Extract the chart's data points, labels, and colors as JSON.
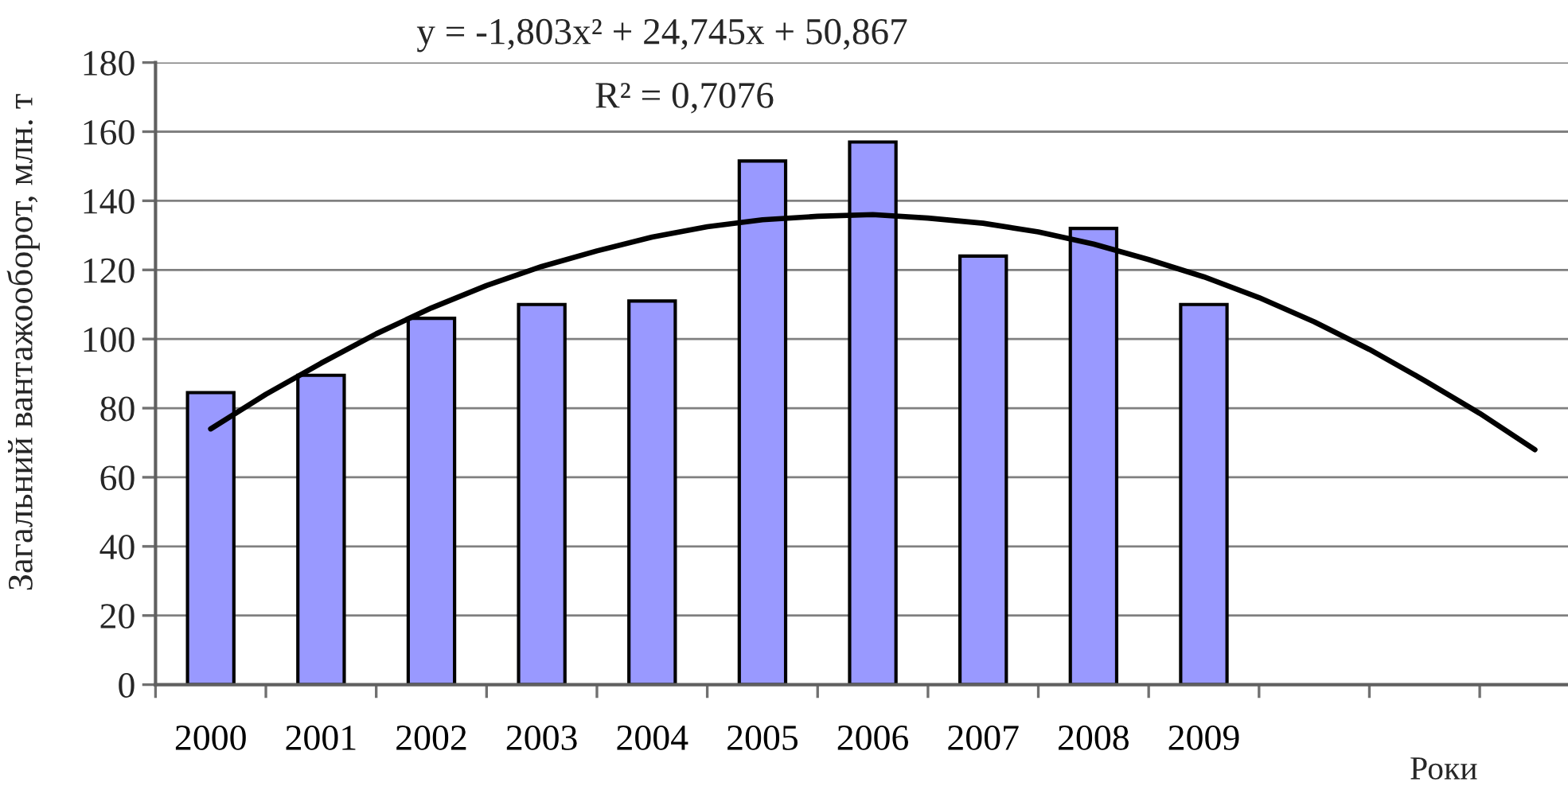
{
  "chart_data": {
    "type": "bar",
    "annotations": [
      "y = -1,803x² + 24,745x + 50,867",
      "R² = 0,7076"
    ],
    "xlabel": "Роки",
    "ylabel": "Загальний вантажооборот, млн. т",
    "x": [
      2000,
      2001,
      2002,
      2003,
      2004,
      2005,
      2006,
      2007,
      2008,
      2009
    ],
    "series": [
      {
        "color": "#9999ff",
        "values": [
          84.5,
          89.5,
          106,
          110,
          111,
          151.5,
          157,
          124,
          132,
          110
        ]
      },
      {
        "type": "line",
        "color": "#000000",
        "x": [
          2000,
          2000.5,
          2001,
          2001.5,
          2002,
          2002.5,
          2003,
          2003.5,
          2004,
          2004.5,
          2005,
          2005.5,
          2006,
          2006.5,
          2007,
          2007.5,
          2008,
          2008.5,
          2009,
          2009.5,
          2010,
          2010.5,
          2011,
          2011.5,
          2012
        ],
        "values": [
          74,
          84,
          93,
          101.5,
          109,
          115.5,
          121,
          125.5,
          129.5,
          132.5,
          134.5,
          135.5,
          136,
          135,
          133.5,
          131,
          127.5,
          123,
          118,
          112,
          105,
          97,
          88,
          78.5,
          68
        ]
      }
    ],
    "xlim": [
      1999.5,
      2012.3
    ],
    "xticks": [
      2000,
      2001,
      2002,
      2003,
      2004,
      2005,
      2006,
      2007,
      2008,
      2009,
      {
        "value": 1999.5,
        "label": null
      },
      {
        "value": 2000.5,
        "label": null
      },
      {
        "value": 2001.5,
        "label": null
      },
      {
        "value": 2002.5,
        "label": null
      },
      {
        "value": 2003.5,
        "label": null
      },
      {
        "value": 2004.5,
        "label": null
      },
      {
        "value": 2005.5,
        "label": null
      },
      {
        "value": 2006.5,
        "label": null
      },
      {
        "value": 2007.5,
        "label": null
      },
      {
        "value": 2008.5,
        "label": null
      },
      {
        "value": 2009.5,
        "label": null
      },
      {
        "value": 2010.5,
        "label": null
      },
      {
        "value": 2011.5,
        "label": null
      }
    ],
    "ylim": [
      0,
      180
    ],
    "yticks": [
      0,
      20,
      40,
      60,
      80,
      100,
      120,
      140,
      160,
      180
    ],
    "grid": "y"
  }
}
